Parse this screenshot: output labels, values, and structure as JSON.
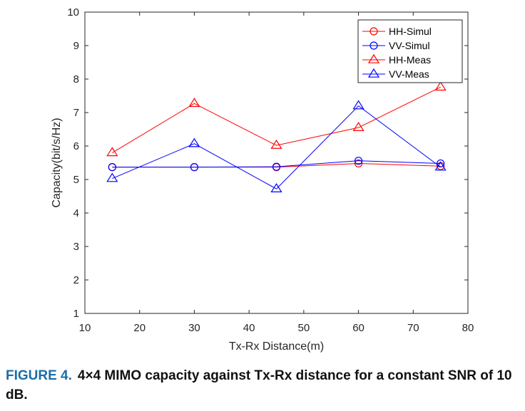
{
  "chart_data": {
    "type": "line",
    "x": [
      15,
      30,
      45,
      60,
      75
    ],
    "xlabel": "Tx-Rx Distance(m)",
    "ylabel": "Capacity(bit/s/Hz)",
    "xlim": [
      10,
      80
    ],
    "ylim": [
      1,
      10
    ],
    "xticks": [
      10,
      20,
      30,
      40,
      50,
      60,
      70,
      80
    ],
    "yticks": [
      1,
      2,
      3,
      4,
      5,
      6,
      7,
      8,
      9,
      10
    ],
    "grid": false,
    "legend_position": "top-right",
    "series": [
      {
        "name": "HH-Simul",
        "values": [
          5.37,
          5.37,
          5.37,
          5.48,
          5.4
        ],
        "color": "#ff0000",
        "marker": "circle"
      },
      {
        "name": "VV-Simul",
        "values": [
          5.37,
          5.37,
          5.38,
          5.56,
          5.48
        ],
        "color": "#0000ff",
        "marker": "circle"
      },
      {
        "name": "HH-Meas",
        "values": [
          5.8,
          7.27,
          6.02,
          6.55,
          7.76
        ],
        "color": "#ff0000",
        "marker": "triangle"
      },
      {
        "name": "VV-Meas",
        "values": [
          5.03,
          6.07,
          4.72,
          7.2,
          5.37
        ],
        "color": "#0000ff",
        "marker": "triangle"
      }
    ]
  },
  "caption": {
    "label": "FIGURE 4.",
    "text": "4×4 MIMO capacity against Tx-Rx distance for a constant SNR of 10 dB."
  }
}
